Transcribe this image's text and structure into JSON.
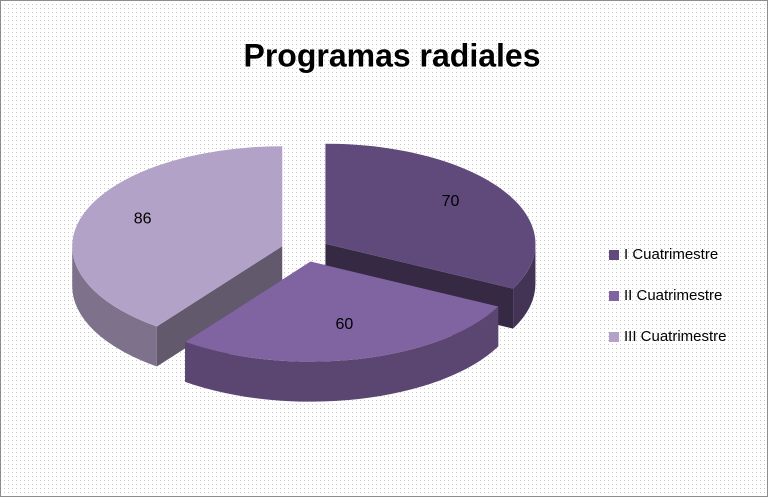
{
  "chart_data": {
    "type": "pie",
    "title": "Programas radiales",
    "categories": [
      "I Cuatrimestre",
      "II Cuatrimestre",
      "III Cuatrimestre"
    ],
    "values": [
      70,
      60,
      86
    ],
    "colors": [
      "#604a7b",
      "#8064a2",
      "#b3a2c7"
    ],
    "legend": "right"
  }
}
